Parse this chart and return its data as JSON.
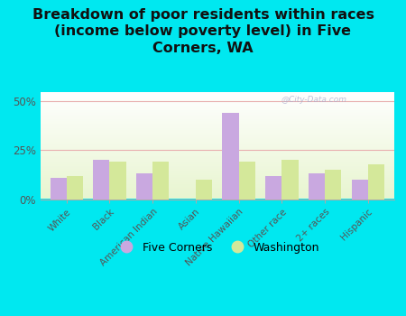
{
  "title": "Breakdown of poor residents within races\n(income below poverty level) in Five\nCorners, WA",
  "categories": [
    "White",
    "Black",
    "American Indian",
    "Asian",
    "Native Hawaiian",
    "Other race",
    "2+ races",
    "Hispanic"
  ],
  "five_corners": [
    11,
    20,
    13,
    0,
    44,
    12,
    13,
    10
  ],
  "washington": [
    12,
    19,
    19,
    10,
    19,
    20,
    15,
    18
  ],
  "fc_color": "#c9a8e0",
  "wa_color": "#d4e89a",
  "ylim": [
    0,
    55
  ],
  "yticks": [
    0,
    25,
    50
  ],
  "ytick_labels": [
    "0%",
    "25%",
    "50%"
  ],
  "bg_outer": "#00e8f0",
  "watermark": "@City-Data.com",
  "legend_fc": "Five Corners",
  "legend_wa": "Washington",
  "title_fontsize": 11.5,
  "bar_width": 0.38
}
